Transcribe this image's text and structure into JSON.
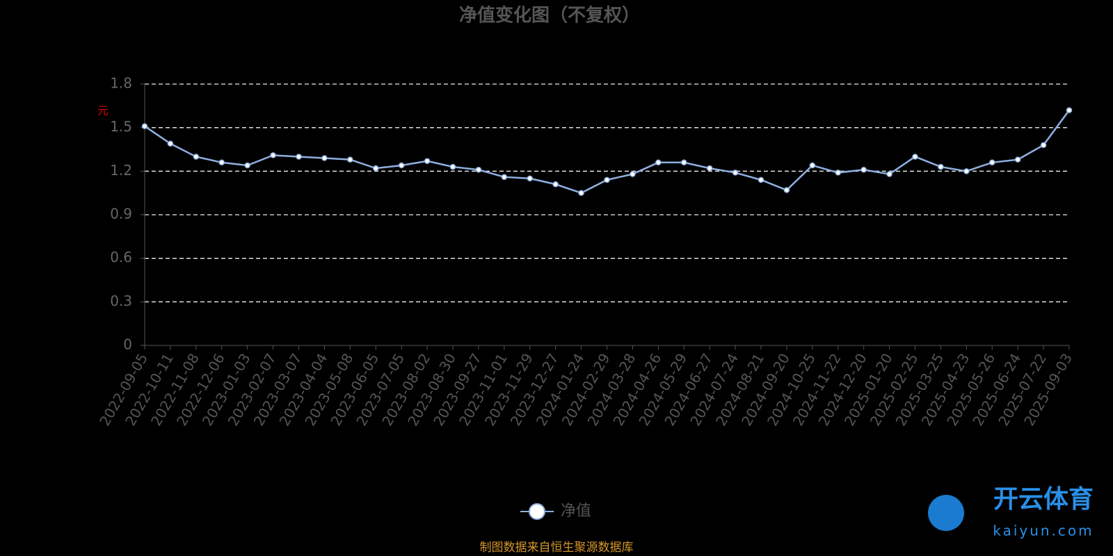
{
  "chart_data": {
    "type": "line",
    "title": "净值变化图（不复权）",
    "y_label": "元",
    "categories": [
      "2022-09-05",
      "2022-10-11",
      "2022-11-08",
      "2022-12-06",
      "2023-01-03",
      "2023-02-07",
      "2023-03-07",
      "2023-04-04",
      "2023-05-08",
      "2023-06-05",
      "2023-07-05",
      "2023-08-02",
      "2023-08-30",
      "2023-09-27",
      "2023-11-01",
      "2023-11-29",
      "2023-12-27",
      "2024-01-24",
      "2024-02-29",
      "2024-03-28",
      "2024-04-26",
      "2024-05-29",
      "2024-06-27",
      "2024-07-24",
      "2024-08-21",
      "2024-09-20",
      "2024-10-25",
      "2024-11-22",
      "2024-12-20",
      "2025-01-20",
      "2025-02-25",
      "2025-03-25",
      "2025-04-23",
      "2025-05-26",
      "2025-06-24",
      "2025-07-22",
      "2025-09-03"
    ],
    "series": [
      {
        "name": "净值",
        "color": "#8fb0e0",
        "values": [
          1.51,
          1.39,
          1.3,
          1.26,
          1.24,
          1.31,
          1.3,
          1.29,
          1.28,
          1.22,
          1.24,
          1.27,
          1.23,
          1.21,
          1.16,
          1.15,
          1.11,
          1.05,
          1.14,
          1.18,
          1.26,
          1.26,
          1.22,
          1.19,
          1.14,
          1.07,
          1.24,
          1.19,
          1.21,
          1.18,
          1.3,
          1.23,
          1.2,
          1.26,
          1.28,
          1.38,
          1.62
        ]
      }
    ],
    "ylim": [
      0,
      1.8
    ],
    "yticks": [
      0,
      0.3,
      0.6,
      0.9,
      1.2,
      1.5,
      1.8
    ],
    "grid": true,
    "legend": "bottom",
    "source": "制图数据来自恒生聚源数据库",
    "watermark": {
      "name": "开云体育",
      "url": "kaiyun.com"
    }
  }
}
